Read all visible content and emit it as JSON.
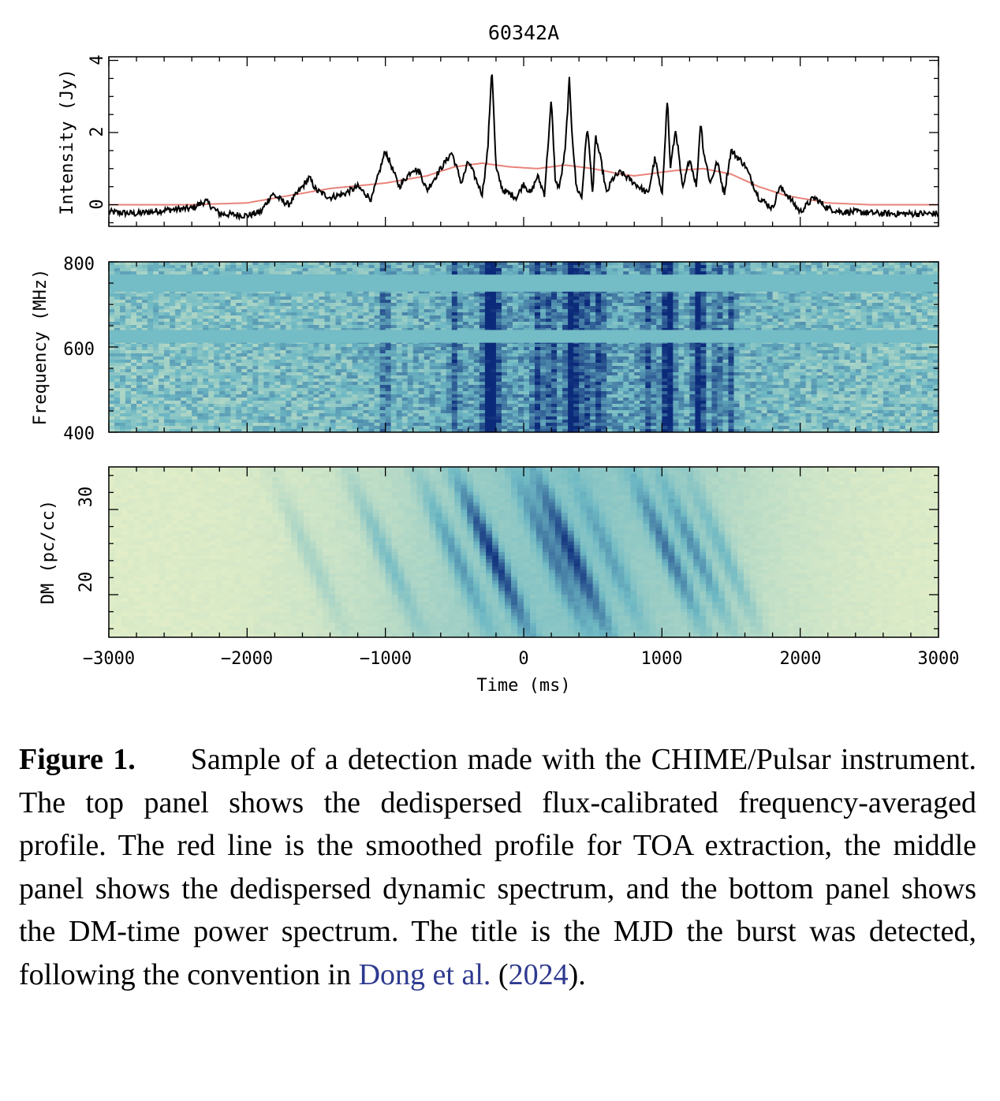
{
  "figure": {
    "title": "60342A",
    "xlabel": "Time (ms)",
    "x_ticks": [
      "−3000",
      "−2000",
      "−1000",
      "0",
      "1000",
      "2000",
      "3000"
    ],
    "colors": {
      "profile": "#000000",
      "smoothed": "#e8837a",
      "cmap_low": "#f2f5c8",
      "cmap_mid": "#6fb9c4",
      "cmap_high": "#0c2a7a"
    }
  },
  "chart_data": [
    {
      "type": "line",
      "panel": "top",
      "ylabel": "Intensity (Jy)",
      "y_ticks": [
        "0",
        "2",
        "4"
      ],
      "xlim": [
        -3000,
        3000
      ],
      "ylim": [
        -0.6,
        4.1
      ],
      "series": [
        {
          "description": "profile",
          "x": [
            -3000,
            -2800,
            -2600,
            -2400,
            -2300,
            -2200,
            -2000,
            -1900,
            -1820,
            -1700,
            -1550,
            -1500,
            -1400,
            -1300,
            -1200,
            -1100,
            -1000,
            -900,
            -800,
            -750,
            -700,
            -600,
            -520,
            -450,
            -400,
            -300,
            -260,
            -230,
            -200,
            -150,
            -100,
            -50,
            0,
            50,
            100,
            150,
            200,
            230,
            260,
            300,
            330,
            350,
            380,
            420,
            460,
            500,
            520,
            560,
            600,
            640,
            700,
            800,
            900,
            950,
            1000,
            1040,
            1060,
            1100,
            1150,
            1200,
            1250,
            1280,
            1300,
            1350,
            1400,
            1450,
            1500,
            1550,
            1600,
            1700,
            1800,
            1850,
            1900,
            2000,
            2100,
            2200,
            2300,
            2400,
            2600,
            2800,
            3000
          ],
          "y": [
            -0.2,
            -0.25,
            -0.15,
            -0.1,
            0.1,
            -0.25,
            -0.3,
            -0.2,
            0.3,
            0.0,
            0.75,
            0.4,
            0.2,
            0.3,
            0.5,
            0.15,
            1.5,
            0.5,
            1.0,
            0.9,
            0.4,
            1.0,
            1.45,
            0.6,
            1.2,
            0.3,
            1.5,
            3.85,
            1.0,
            0.4,
            0.3,
            0.2,
            0.6,
            0.3,
            0.8,
            0.3,
            2.9,
            0.6,
            0.5,
            1.5,
            3.45,
            2.0,
            0.5,
            0.2,
            2.2,
            0.3,
            1.9,
            1.2,
            0.3,
            0.7,
            0.9,
            0.6,
            0.3,
            1.3,
            0.2,
            3.0,
            1.0,
            2.1,
            0.4,
            1.3,
            0.5,
            2.35,
            1.5,
            0.6,
            1.2,
            0.3,
            1.5,
            1.3,
            1.1,
            0.2,
            -0.1,
            0.5,
            0.3,
            -0.2,
            0.2,
            -0.1,
            -0.2,
            -0.2,
            -0.25,
            -0.25,
            -0.25
          ]
        },
        {
          "description": "smoothed",
          "x": [
            -3000,
            -2400,
            -2000,
            -1700,
            -1400,
            -1000,
            -700,
            -500,
            -300,
            -100,
            100,
            300,
            500,
            700,
            800,
            900,
            1100,
            1300,
            1500,
            1700,
            1900,
            2200,
            2500,
            3000
          ],
          "y": [
            0.0,
            0.0,
            0.05,
            0.25,
            0.45,
            0.6,
            0.8,
            1.05,
            1.15,
            1.05,
            1.0,
            1.1,
            1.0,
            0.85,
            0.8,
            0.85,
            0.95,
            1.0,
            0.85,
            0.5,
            0.25,
            0.05,
            0.0,
            0.0
          ]
        }
      ]
    },
    {
      "type": "heatmap",
      "panel": "middle",
      "ylabel": "Frequency (MHz)",
      "y_ticks": [
        "400",
        "600",
        "800"
      ],
      "xlim": [
        -3000,
        3000
      ],
      "ylim": [
        400,
        800
      ],
      "masked_bands_mhz": [
        [
          730,
          770
        ],
        [
          610,
          640
        ]
      ],
      "strong_times_ms": [
        -250,
        350,
        1050,
        1270
      ],
      "moderate_times_ms": [
        -1000,
        -500,
        -200,
        100,
        200,
        450,
        550,
        900,
        1400,
        1500
      ]
    },
    {
      "type": "heatmap",
      "panel": "bottom",
      "ylabel": "DM (pc/cc)",
      "y_ticks": [
        "20",
        "30"
      ],
      "xlim": [
        -3000,
        3000
      ],
      "ylim": [
        15,
        35
      ],
      "peak_dm": 24.8,
      "peaks": [
        {
          "t": -230,
          "amp": 1.0
        },
        {
          "t": 350,
          "amp": 0.9
        },
        {
          "t": 200,
          "amp": 0.55
        },
        {
          "t": 1050,
          "amp": 0.7
        },
        {
          "t": 1250,
          "amp": 0.6
        },
        {
          "t": 1450,
          "amp": 0.4
        },
        {
          "t": -1000,
          "amp": 0.4
        },
        {
          "t": -500,
          "amp": 0.5
        },
        {
          "t": 620,
          "amp": 0.35
        },
        {
          "t": -1550,
          "amp": 0.25
        }
      ]
    }
  ],
  "caption": {
    "label": "Figure 1.",
    "text": "Sample of a detection made with the CHIME/Pulsar instrument. The top panel shows the dedispersed flux-calibrated frequency-averaged profile. The red line is the smoothed profile for TOA extraction, the middle panel shows the dedispersed dynamic spectrum, and the bottom panel shows the DM-time power spectrum. The title is the MJD the burst was detected, following the convention in ",
    "citation_authors": "Dong et al.",
    "citation_year_open": " (",
    "citation_year": "2024",
    "citation_close": ")."
  }
}
